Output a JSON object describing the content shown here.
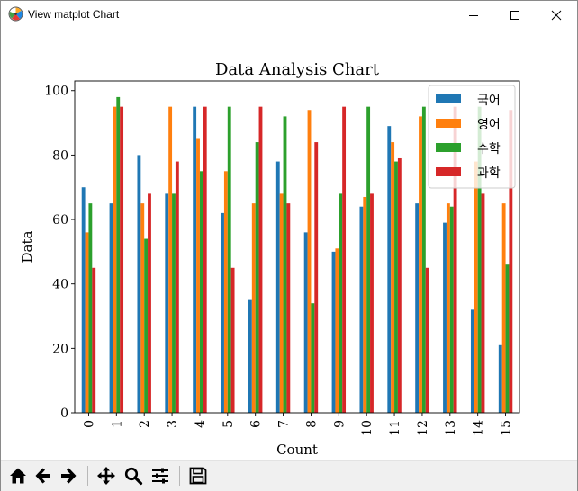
{
  "window": {
    "title": "View matplot Chart",
    "icons": [
      "matplotlib-logo-icon",
      "minimize-icon",
      "maximize-icon",
      "close-icon"
    ]
  },
  "toolbar": {
    "icons": [
      "home-icon",
      "back-arrow-icon",
      "forward-arrow-icon",
      "pan-move-icon",
      "zoom-magnifier-icon",
      "configure-subplots-icon",
      "save-floppy-icon"
    ]
  },
  "colors": {
    "series": [
      "#1f77b4",
      "#ff7f0e",
      "#2ca02c",
      "#d62728"
    ]
  },
  "chart_data": {
    "type": "bar",
    "title": "Data Analysis Chart",
    "xlabel": "Count",
    "ylabel": "Data",
    "categories": [
      "0",
      "1",
      "2",
      "3",
      "4",
      "5",
      "6",
      "7",
      "8",
      "9",
      "10",
      "11",
      "12",
      "13",
      "14",
      "15"
    ],
    "ylim": [
      0,
      103
    ],
    "yticks": [
      0,
      20,
      40,
      60,
      80,
      100
    ],
    "grid": false,
    "legend_position": "top-right",
    "series": [
      {
        "name": "국어",
        "values": [
          70,
          65,
          80,
          68,
          95,
          62,
          35,
          78,
          56,
          50,
          64,
          89,
          65,
          59,
          32,
          21
        ]
      },
      {
        "name": "영어",
        "values": [
          56,
          95,
          65,
          95,
          85,
          75,
          65,
          68,
          94,
          51,
          67,
          84,
          92,
          65,
          78,
          65
        ]
      },
      {
        "name": "수학",
        "values": [
          65,
          98,
          54,
          68,
          75,
          95,
          84,
          92,
          34,
          68,
          95,
          78,
          95,
          64,
          95,
          46
        ]
      },
      {
        "name": "과학",
        "values": [
          45,
          95,
          68,
          78,
          95,
          45,
          95,
          65,
          84,
          95,
          68,
          79,
          45,
          95,
          68,
          94
        ]
      }
    ]
  }
}
